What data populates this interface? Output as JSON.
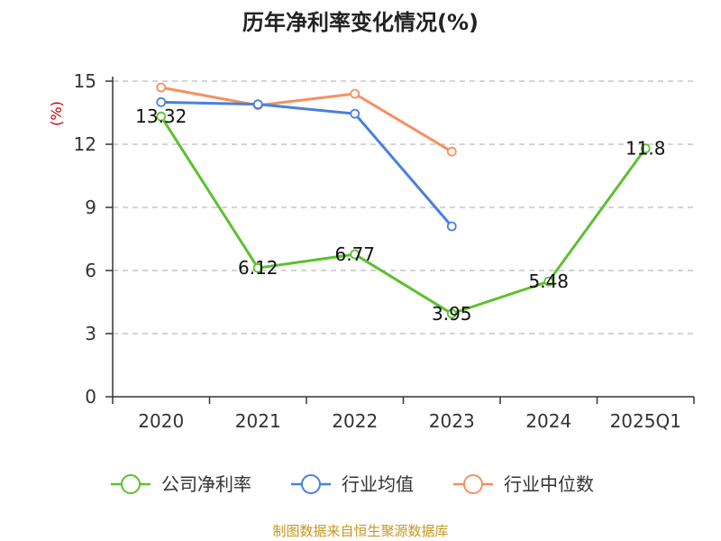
{
  "colors": {
    "company": "#5cc02f",
    "industry_avg": "#4b7fdc",
    "industry_median": "#f59060",
    "grid": "#bbbbbb",
    "axis": "#333333",
    "source": "#c8961e",
    "unit": "#cc0000"
  },
  "chart_data": {
    "type": "line",
    "title": "历年净利率变化情况(%)",
    "ylabel": "(%)",
    "categories": [
      "2020",
      "2021",
      "2022",
      "2023",
      "2024",
      "2025Q1"
    ],
    "yticks": [
      0,
      3,
      6,
      9,
      12,
      15
    ],
    "ylim": [
      0,
      15
    ],
    "grid": true,
    "legend_position": "bottom",
    "series": [
      {
        "name": "公司净利率",
        "values": [
          13.32,
          6.12,
          6.77,
          3.95,
          5.48,
          11.8
        ],
        "labels": [
          "13.32",
          "6.12",
          "6.77",
          "3.95",
          "5.48",
          "11.8"
        ]
      },
      {
        "name": "行业均值",
        "values": [
          14.0,
          13.9,
          13.45,
          8.1,
          null,
          null
        ]
      },
      {
        "name": "行业中位数",
        "values": [
          14.7,
          13.85,
          14.4,
          11.65,
          null,
          null
        ]
      }
    ]
  },
  "footer": {
    "source": "制图数据来自恒生聚源数据库"
  }
}
